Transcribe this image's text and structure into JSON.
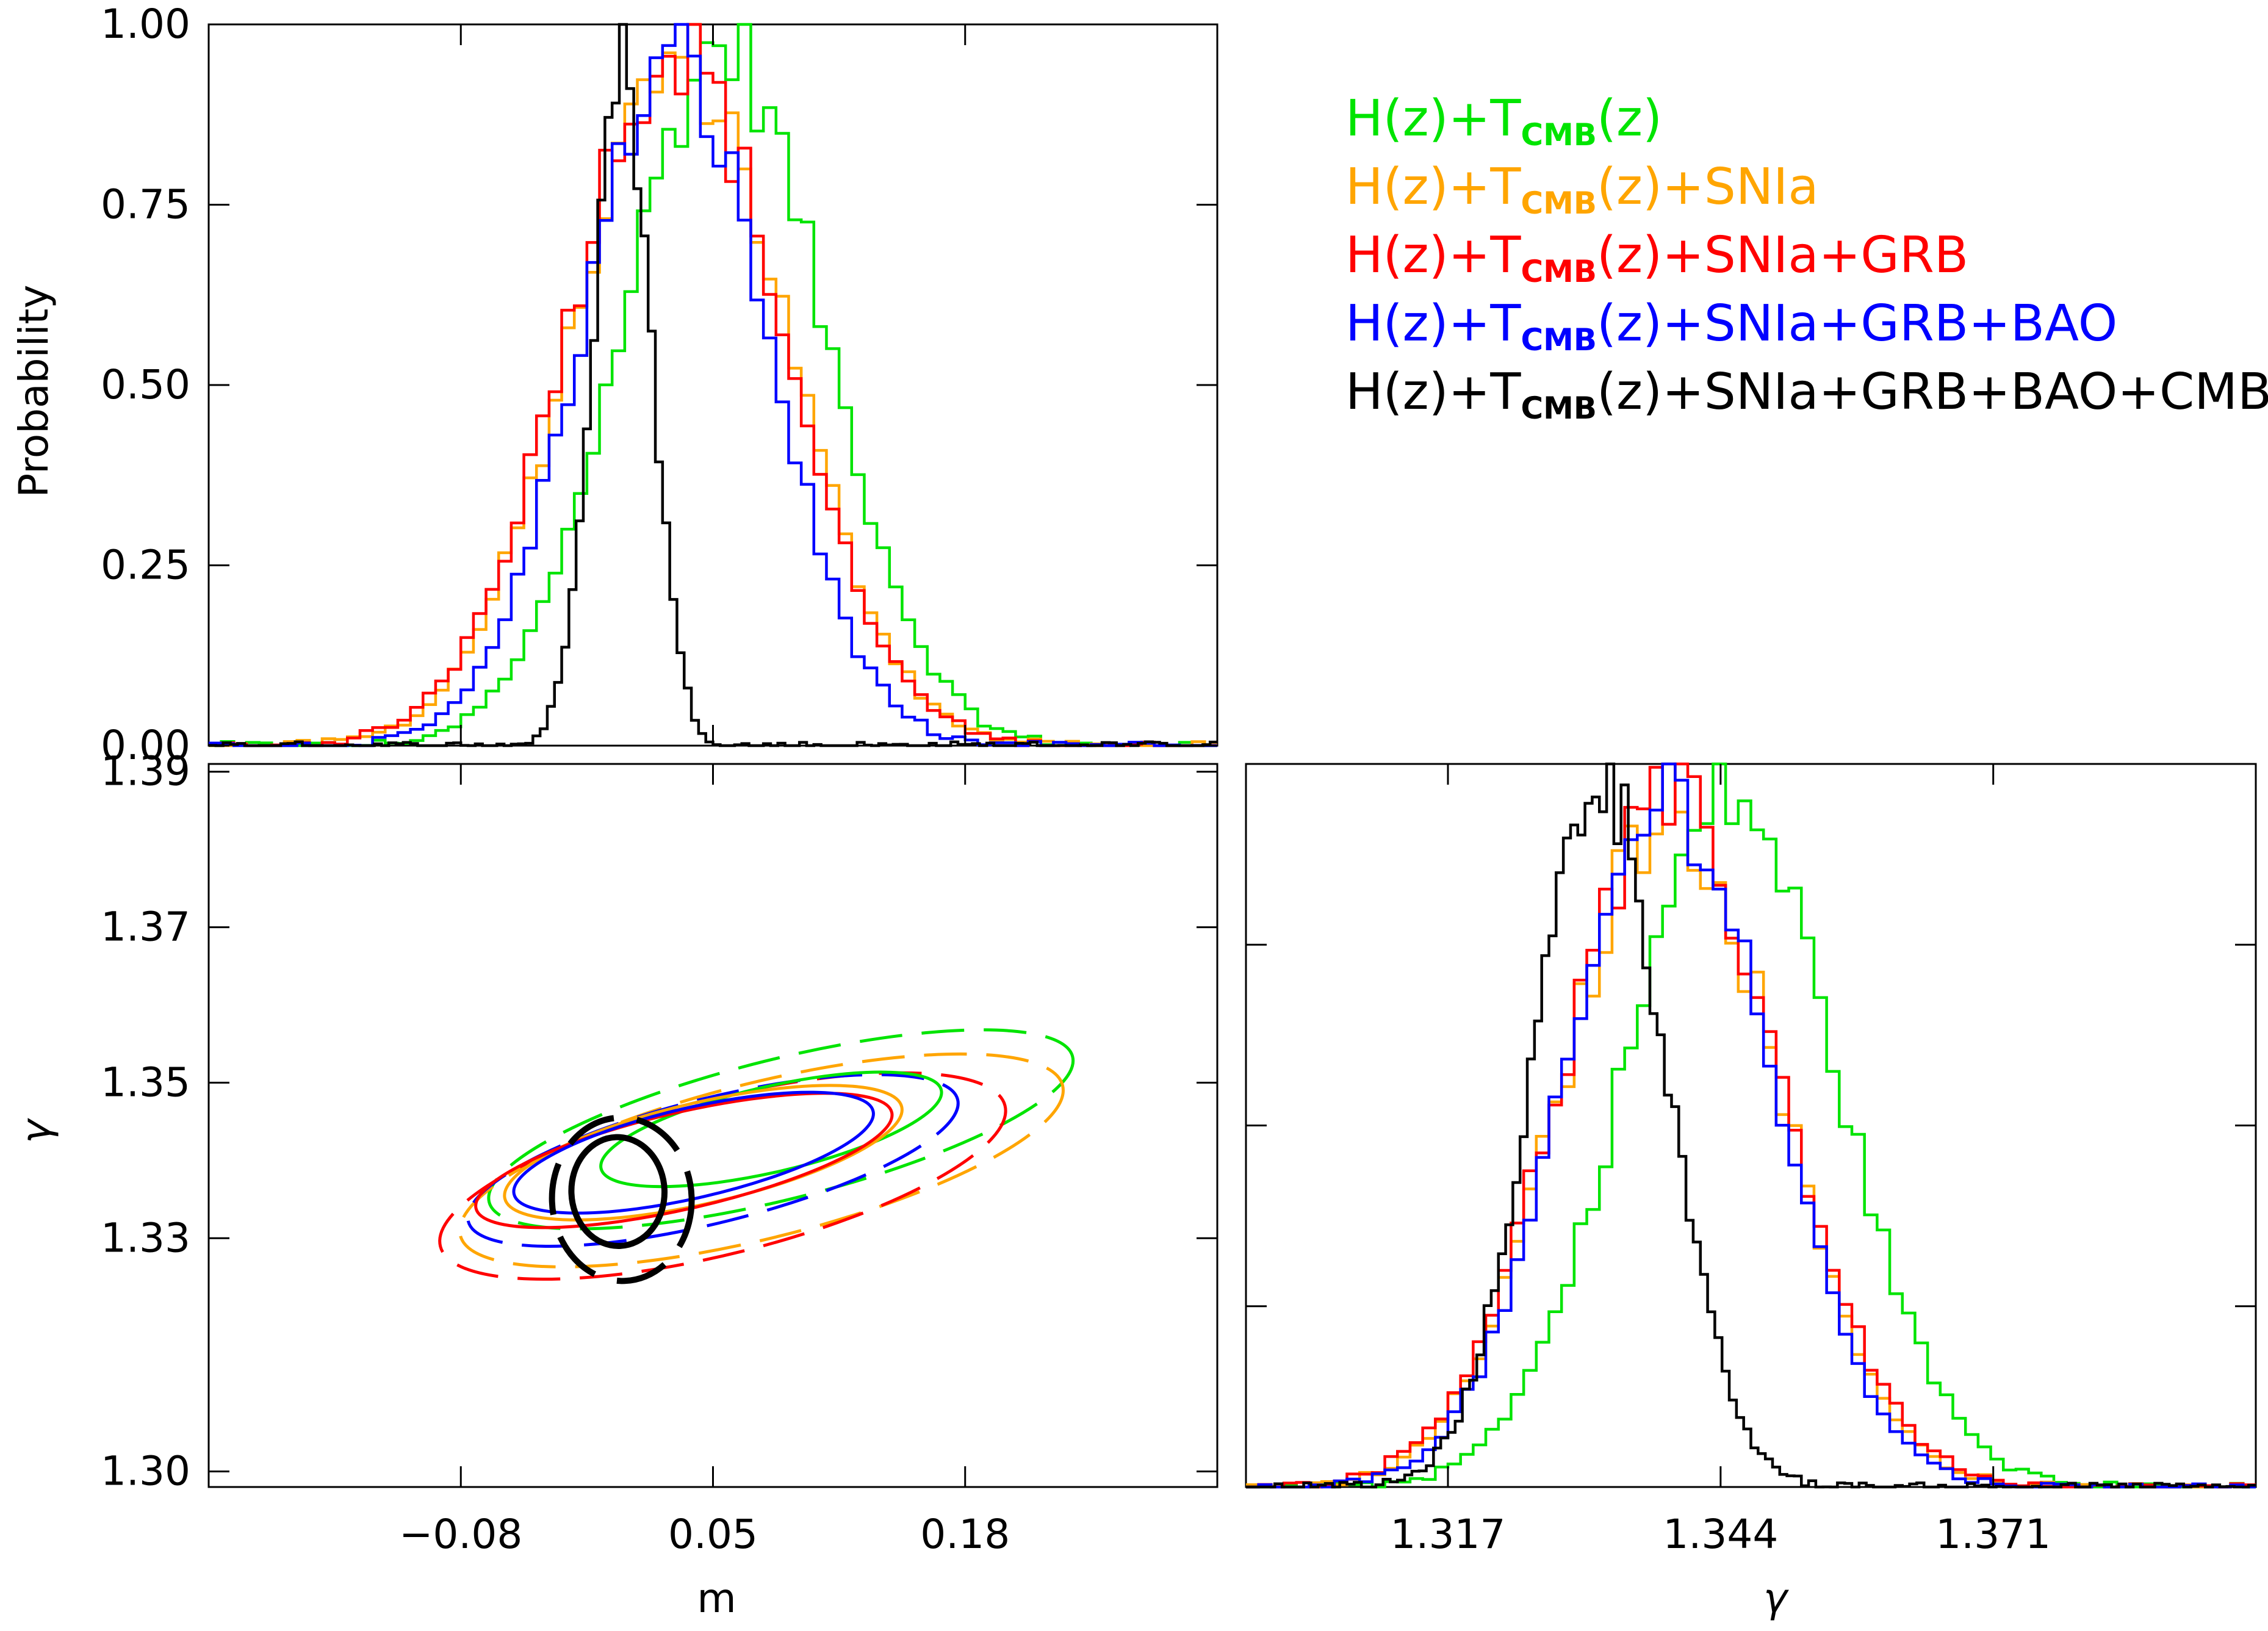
{
  "colors": {
    "green": "#00e400",
    "orange": "#ffa500",
    "red": "#ff0000",
    "blue": "#0000ff",
    "black": "#000000"
  },
  "legend": [
    {
      "color": "green",
      "pre": "H(z)+T",
      "sub": "CMB",
      "post": "(z)"
    },
    {
      "color": "orange",
      "pre": "H(z)+T",
      "sub": "CMB",
      "post": "(z)+SNIa"
    },
    {
      "color": "red",
      "pre": "H(z)+T",
      "sub": "CMB",
      "post": "(z)+SNIa+GRB"
    },
    {
      "color": "blue",
      "pre": "H(z)+T",
      "sub": "CMB",
      "post": "(z)+SNIa+GRB+BAO"
    },
    {
      "color": "black",
      "pre": "H(z)+T",
      "sub": "CMB",
      "post": "(z)+SNIa+GRB+BAO+CMB"
    }
  ],
  "chart_data": [
    {
      "type": "line",
      "panel": "top-left",
      "xlabel": "",
      "ylabel": "Probability",
      "xlim": [
        -0.21,
        0.31
      ],
      "ylim": [
        0.0,
        1.0
      ],
      "xticks": [
        -0.08,
        0.05,
        0.18
      ],
      "yticks": [
        "0.00",
        "0.25",
        "0.50",
        "0.75",
        "1.00"
      ],
      "show_x_tick_labels": false,
      "series": [
        {
          "color": "green",
          "mean": 0.055,
          "sigma": 0.052
        },
        {
          "color": "orange",
          "mean": 0.033,
          "sigma": 0.055
        },
        {
          "color": "red",
          "mean": 0.03,
          "sigma": 0.055
        },
        {
          "color": "blue",
          "mean": 0.03,
          "sigma": 0.048
        },
        {
          "color": "black",
          "mean": 0.003,
          "sigma": 0.015
        }
      ]
    },
    {
      "type": "contour",
      "panel": "bottom-left",
      "xlabel": "m",
      "ylabel": "γ",
      "xlim": [
        -0.21,
        0.31
      ],
      "ylim": [
        1.298,
        1.391
      ],
      "xticks": [
        "−0.08",
        "0.05",
        "0.18"
      ],
      "xtick_values": [
        -0.08,
        0.05,
        0.18
      ],
      "yticks": [
        "1.30",
        "1.33",
        "1.35",
        "1.37",
        "1.39"
      ],
      "ytick_values": [
        1.3,
        1.33,
        1.35,
        1.37,
        1.39
      ],
      "contours": [
        {
          "color": "green",
          "style": "dashed",
          "cx": 0.085,
          "cy": 1.344,
          "rx": 0.155,
          "ry": 0.009,
          "angle": 14
        },
        {
          "color": "orange",
          "style": "dashed",
          "cx": 0.075,
          "cy": 1.34,
          "rx": 0.16,
          "ry": 0.01,
          "angle": 14
        },
        {
          "color": "red",
          "style": "dashed",
          "cx": 0.055,
          "cy": 1.338,
          "rx": 0.15,
          "ry": 0.01,
          "angle": 14
        },
        {
          "color": "blue",
          "style": "dashed",
          "cx": 0.05,
          "cy": 1.34,
          "rx": 0.13,
          "ry": 0.008,
          "angle": 14
        },
        {
          "color": "green",
          "style": "solid",
          "cx": 0.08,
          "cy": 1.344,
          "rx": 0.09,
          "ry": 0.0055,
          "angle": 13
        },
        {
          "color": "orange",
          "style": "solid",
          "cx": 0.045,
          "cy": 1.341,
          "rx": 0.105,
          "ry": 0.0065,
          "angle": 13
        },
        {
          "color": "red",
          "style": "solid",
          "cx": 0.035,
          "cy": 1.34,
          "rx": 0.11,
          "ry": 0.0062,
          "angle": 13
        },
        {
          "color": "blue",
          "style": "solid",
          "cx": 0.04,
          "cy": 1.341,
          "rx": 0.095,
          "ry": 0.0058,
          "angle": 13
        },
        {
          "color": "black",
          "style": "dashed",
          "cx": 0.003,
          "cy": 1.335,
          "rx": 0.036,
          "ry": 0.0105,
          "angle": 2
        },
        {
          "color": "black",
          "style": "solid",
          "cx": 0.001,
          "cy": 1.336,
          "rx": 0.024,
          "ry": 0.007,
          "angle": 2
        }
      ]
    },
    {
      "type": "line",
      "panel": "bottom-right",
      "xlabel": "γ",
      "ylabel": "",
      "xlim": [
        1.297,
        1.397
      ],
      "ylim": [
        0.0,
        1.0
      ],
      "xticks": [
        "1.317",
        "1.344",
        "1.371"
      ],
      "xtick_values": [
        1.317,
        1.344,
        1.371
      ],
      "show_y_tick_labels": false,
      "series": [
        {
          "color": "green",
          "mean": 1.345,
          "sigma": 0.0105
        },
        {
          "color": "orange",
          "mean": 1.339,
          "sigma": 0.0105
        },
        {
          "color": "red",
          "mean": 1.339,
          "sigma": 0.0108
        },
        {
          "color": "blue",
          "mean": 1.339,
          "sigma": 0.01
        },
        {
          "color": "black",
          "mean": 1.332,
          "sigma": 0.0065
        }
      ]
    }
  ]
}
